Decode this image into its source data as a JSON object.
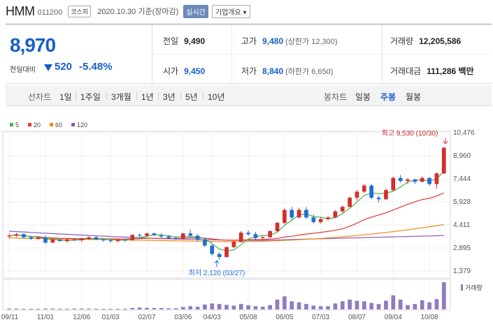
{
  "header": {
    "name": "HMM",
    "code": "011200",
    "market": "코스피",
    "date_text": "2020.10.30 기준(장마감)",
    "realtime": "실시간",
    "company_info": "기업개요 ▾"
  },
  "quote": {
    "price": "8,970",
    "diff_label": "전일대비",
    "diff": "520",
    "rate": "-5.48%",
    "prev_close_label": "전일",
    "prev_close": "9,490",
    "high_label": "고가",
    "high": "9,480",
    "upper_limit": "(상한가 12,300)",
    "volume_label": "거래량",
    "volume": "12,205,586",
    "open_label": "시가",
    "open": "9,450",
    "low_label": "저가",
    "low": "8,840",
    "lower_limit": "(하한가 6,650)",
    "amount_label": "거래대금",
    "amount": "111,286 백만"
  },
  "toolbar": {
    "line_chart": "선차트",
    "periods": [
      "1일",
      "1주일",
      "3개월",
      "1년",
      "3년",
      "5년",
      "10년"
    ],
    "candle_chart": "봉차트",
    "candle_periods": [
      "일봉",
      "주봉",
      "월봉"
    ],
    "active_candle": "주봉"
  },
  "colors": {
    "up": "#d32f2f",
    "down": "#1e6fd0",
    "ma5": "#4caf50",
    "ma20": "#e53935",
    "ma60": "#f08c1a",
    "ma120": "#8e5bb8",
    "volume": "#8f7cbf"
  },
  "chart_data": {
    "type": "candlestick",
    "title": "",
    "legend": [
      "5",
      "20",
      "60",
      "120"
    ],
    "yticks": [
      "10,476",
      "8,960",
      "7,444",
      "5,928",
      "4,411",
      "2,895",
      "1,379"
    ],
    "ylim": [
      1379,
      10476
    ],
    "xticks": [
      "09/11",
      "11/01",
      "12/06",
      "01/03",
      "02/07",
      "03/06",
      "04/03",
      "05/08",
      "06/05",
      "07/03",
      "08/07",
      "09/04",
      "10/08"
    ],
    "annotations": {
      "high": "최고 9,530 (10/30)",
      "low": "최저 2,120 (03/27)"
    },
    "volume_label": "거래량",
    "candles": [
      [
        3650,
        3850,
        3500,
        3700
      ],
      [
        3700,
        3900,
        3600,
        3800
      ],
      [
        3800,
        3850,
        3500,
        3600
      ],
      [
        3600,
        3700,
        3400,
        3500
      ],
      [
        3500,
        3650,
        3400,
        3600
      ],
      [
        3600,
        3700,
        3150,
        3250
      ],
      [
        3250,
        3500,
        3200,
        3450
      ],
      [
        3450,
        3550,
        3300,
        3350
      ],
      [
        3350,
        3500,
        3250,
        3450
      ],
      [
        3450,
        3550,
        3350,
        3400
      ],
      [
        3400,
        3550,
        3300,
        3500
      ],
      [
        3500,
        3650,
        3400,
        3600
      ],
      [
        3600,
        3700,
        3400,
        3450
      ],
      [
        3450,
        3550,
        3300,
        3400
      ],
      [
        3400,
        3500,
        3250,
        3350
      ],
      [
        3350,
        3500,
        3250,
        3450
      ],
      [
        3450,
        3500,
        3300,
        3400
      ],
      [
        3400,
        3800,
        3350,
        3750
      ],
      [
        3750,
        3850,
        3600,
        3700
      ],
      [
        3700,
        3900,
        3600,
        3850
      ],
      [
        3850,
        3900,
        3700,
        3750
      ],
      [
        3750,
        3850,
        3550,
        3650
      ],
      [
        3650,
        3750,
        3450,
        3550
      ],
      [
        3550,
        3650,
        3400,
        3500
      ],
      [
        3500,
        3900,
        3450,
        3850
      ],
      [
        3850,
        4100,
        3600,
        3700
      ],
      [
        3700,
        3800,
        3350,
        3450
      ],
      [
        3450,
        3600,
        2950,
        3050
      ],
      [
        3050,
        3150,
        2400,
        2500
      ],
      [
        2500,
        2600,
        2120,
        2300
      ],
      [
        2300,
        3000,
        2250,
        2950
      ],
      [
        2950,
        3350,
        2900,
        3300
      ],
      [
        3300,
        4000,
        3250,
        3900
      ],
      [
        3900,
        4050,
        3700,
        3800
      ],
      [
        3800,
        3950,
        3450,
        3550
      ],
      [
        3550,
        3700,
        3400,
        3600
      ],
      [
        3600,
        4050,
        3550,
        4000
      ],
      [
        4000,
        4600,
        3950,
        4550
      ],
      [
        4550,
        5500,
        4450,
        5400
      ],
      [
        5400,
        5600,
        4700,
        4900
      ],
      [
        4900,
        5550,
        4850,
        5400
      ],
      [
        5400,
        5600,
        4800,
        4900
      ],
      [
        4900,
        5100,
        4500,
        4600
      ],
      [
        4600,
        4900,
        4500,
        4800
      ],
      [
        4800,
        5000,
        4700,
        4900
      ],
      [
        4900,
        5400,
        4850,
        5300
      ],
      [
        5300,
        5700,
        5200,
        5600
      ],
      [
        5600,
        6300,
        5550,
        6200
      ],
      [
        6200,
        6700,
        6000,
        6600
      ],
      [
        6600,
        7100,
        6500,
        7000
      ],
      [
        7000,
        7100,
        6100,
        6200
      ],
      [
        6200,
        6350,
        5900,
        6100
      ],
      [
        6100,
        6800,
        6050,
        6700
      ],
      [
        6700,
        7600,
        6600,
        7500
      ],
      [
        7500,
        7700,
        7200,
        7300
      ],
      [
        7300,
        7500,
        7100,
        7400
      ],
      [
        7400,
        7450,
        7100,
        7250
      ],
      [
        7250,
        7600,
        7200,
        7500
      ],
      [
        7500,
        7550,
        7000,
        7100
      ],
      [
        7100,
        7850,
        6800,
        7800
      ],
      [
        7800,
        9530,
        7750,
        9490
      ]
    ],
    "volumes": [
      0.03,
      0.03,
      0.02,
      0.02,
      0.02,
      0.03,
      0.03,
      0.02,
      0.02,
      0.03,
      0.03,
      0.03,
      0.02,
      0.02,
      0.02,
      0.02,
      0.02,
      0.05,
      0.07,
      0.06,
      0.05,
      0.05,
      0.04,
      0.04,
      0.09,
      0.12,
      0.1,
      0.18,
      0.22,
      0.2,
      0.17,
      0.14,
      0.2,
      0.15,
      0.12,
      0.1,
      0.16,
      0.36,
      0.48,
      0.3,
      0.26,
      0.2,
      0.14,
      0.12,
      0.12,
      0.22,
      0.3,
      0.36,
      0.32,
      0.3,
      0.24,
      0.2,
      0.32,
      0.52,
      0.36,
      0.16,
      0.2,
      0.34,
      0.26,
      0.38,
      1.0
    ]
  }
}
